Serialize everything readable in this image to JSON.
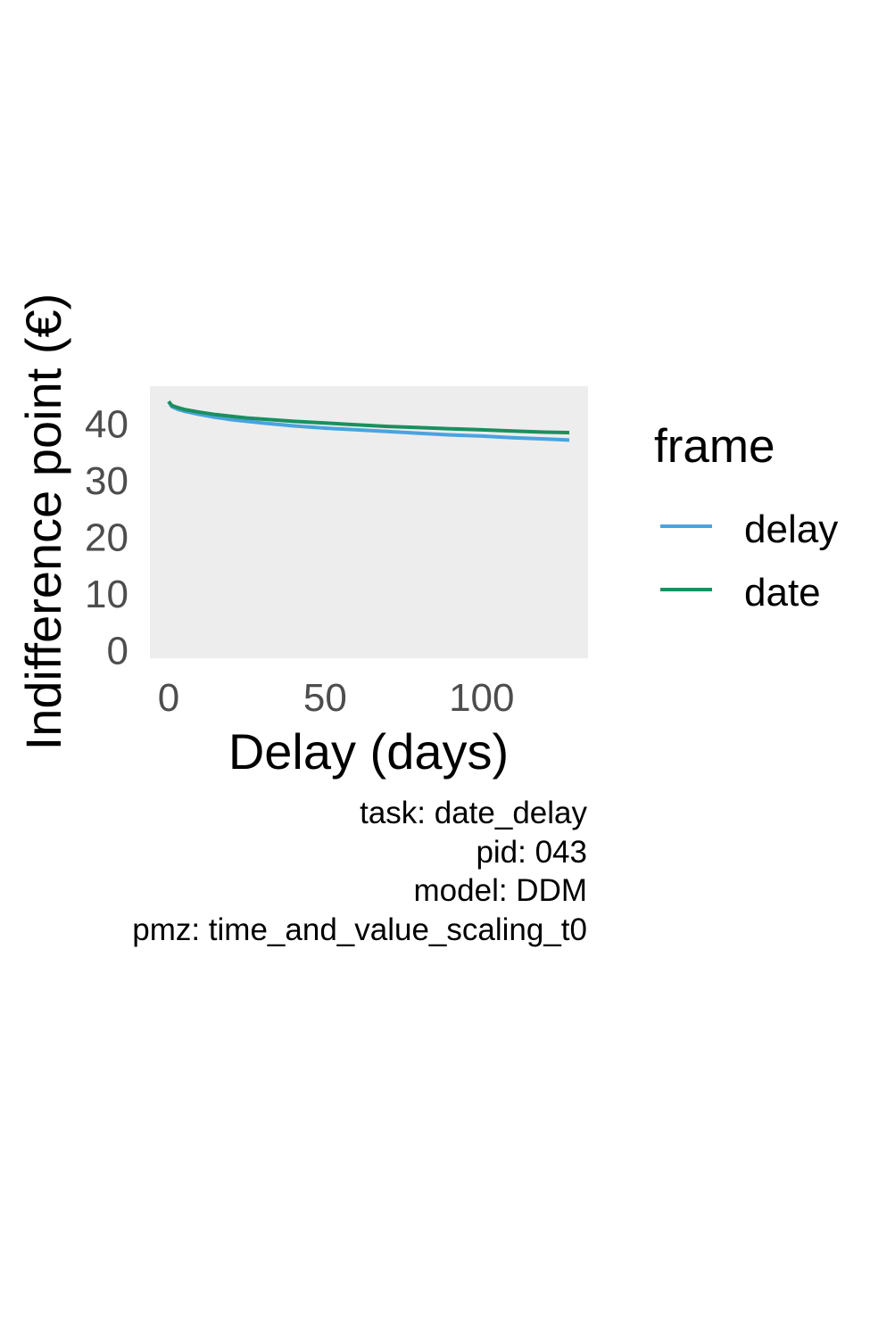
{
  "chart_data": {
    "type": "line",
    "xlabel": "Delay (days)",
    "ylabel": "Indifference point (€)",
    "xlim": [
      -6,
      134
    ],
    "ylim": [
      -1.5,
      46.5
    ],
    "x_ticks": [
      0,
      50,
      100
    ],
    "y_ticks": [
      0,
      10,
      20,
      30,
      40
    ],
    "x_tick_labels": [
      "0",
      "50",
      "100"
    ],
    "y_tick_labels": [
      "0",
      "10",
      "20",
      "30",
      "40"
    ],
    "grid": false,
    "panel_background": "#ededed",
    "legend": {
      "title": "frame",
      "position": "right",
      "entries": [
        "delay",
        "date"
      ]
    },
    "series": [
      {
        "name": "delay",
        "color": "#4aa3df",
        "points": [
          [
            0,
            43.8
          ],
          [
            1,
            42.9
          ],
          [
            3,
            42.4
          ],
          [
            5,
            42.1
          ],
          [
            10,
            41.5
          ],
          [
            15,
            41.0
          ],
          [
            20,
            40.6
          ],
          [
            25,
            40.3
          ],
          [
            30,
            40.0
          ],
          [
            40,
            39.5
          ],
          [
            50,
            39.1
          ],
          [
            60,
            38.8
          ],
          [
            70,
            38.5
          ],
          [
            80,
            38.2
          ],
          [
            90,
            37.9
          ],
          [
            100,
            37.7
          ],
          [
            110,
            37.4
          ],
          [
            120,
            37.2
          ],
          [
            128,
            37.0
          ]
        ]
      },
      {
        "name": "date",
        "color": "#1b8f5f",
        "points": [
          [
            0,
            43.8
          ],
          [
            1,
            43.1
          ],
          [
            3,
            42.7
          ],
          [
            5,
            42.4
          ],
          [
            10,
            41.9
          ],
          [
            15,
            41.5
          ],
          [
            20,
            41.2
          ],
          [
            25,
            40.9
          ],
          [
            30,
            40.7
          ],
          [
            40,
            40.3
          ],
          [
            50,
            40.0
          ],
          [
            60,
            39.7
          ],
          [
            70,
            39.4
          ],
          [
            80,
            39.2
          ],
          [
            90,
            39.0
          ],
          [
            100,
            38.8
          ],
          [
            110,
            38.6
          ],
          [
            120,
            38.4
          ],
          [
            128,
            38.3
          ]
        ]
      }
    ]
  },
  "caption": {
    "lines": [
      "task: date_delay",
      "pid: 043",
      "model: DDM",
      "pmz: time_and_value_scaling_t0"
    ]
  }
}
